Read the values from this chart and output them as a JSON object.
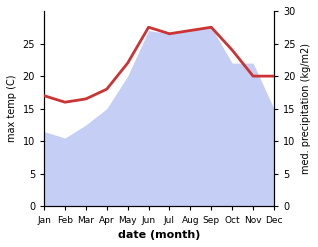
{
  "months": [
    "Jan",
    "Feb",
    "Mar",
    "Apr",
    "May",
    "Jun",
    "Jul",
    "Aug",
    "Sep",
    "Oct",
    "Nov",
    "Dec"
  ],
  "temp": [
    11.5,
    10.5,
    12.0,
    15.0,
    19.5,
    25.5,
    26.0,
    26.5,
    27.0,
    22.0,
    19.5,
    15.0
  ],
  "precip": [
    11.5,
    10.5,
    12.5,
    15.0,
    20.0,
    27.0,
    26.5,
    27.0,
    27.5,
    22.0,
    22.0,
    15.0
  ],
  "temp_color": "#cc3333",
  "precip_fill_color": "#c5cef5",
  "ylabel_left": "max temp (C)",
  "ylabel_right": "med. precipitation (kg/m2)",
  "xlabel": "date (month)",
  "ylim_left": [
    0,
    30
  ],
  "ylim_right": [
    0,
    30
  ],
  "bg_color": "#ffffff",
  "line_width": 2.0,
  "temp_series": [
    17.0,
    16.0,
    16.5,
    18.0,
    22.0,
    27.5,
    26.5,
    27.0,
    27.5,
    24.0,
    20.0,
    20.0
  ]
}
